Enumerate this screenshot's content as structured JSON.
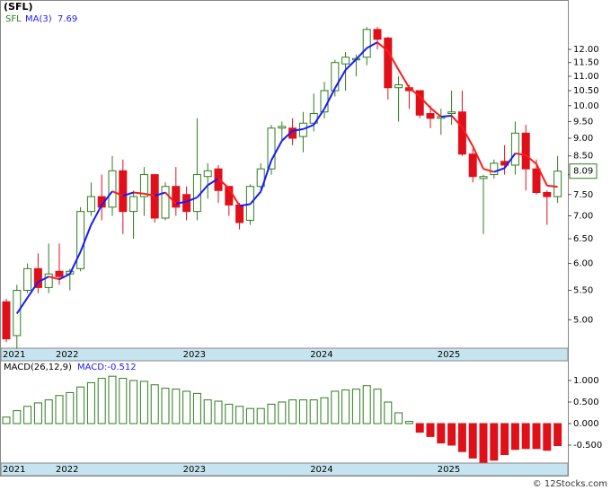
{
  "title": "(SFL)",
  "footer": "© 12Stocks.com",
  "chart_data": [
    {
      "type": "candlestick",
      "log": true,
      "legend": {
        "symbol": "SFL",
        "ma_name": "MA(3)"
      },
      "categories": [
        "2021",
        null,
        null,
        null,
        null,
        "2022",
        null,
        null,
        null,
        null,
        null,
        null,
        null,
        null,
        null,
        null,
        null,
        "2023",
        null,
        null,
        null,
        null,
        null,
        null,
        null,
        null,
        null,
        null,
        null,
        "2024",
        null,
        null,
        null,
        null,
        null,
        null,
        null,
        null,
        null,
        null,
        null,
        "2025",
        null,
        null,
        null,
        null,
        null,
        null,
        null,
        null,
        null,
        null,
        null
      ],
      "open": [
        5.3,
        4.75,
        5.5,
        5.9,
        5.55,
        5.85,
        5.8,
        5.9,
        7.1,
        7.45,
        7.2,
        8.1,
        7.1,
        7.45,
        8.0,
        6.95,
        7.7,
        7.5,
        7.1,
        7.95,
        8.15,
        7.7,
        7.25,
        6.9,
        7.7,
        8.15,
        9.3,
        9.3,
        9.05,
        9.45,
        9.8,
        10.5,
        11.45,
        11.6,
        11.7,
        12.8,
        12.45,
        10.6,
        10.6,
        10.5,
        9.75,
        9.6,
        9.75,
        9.8,
        8.55,
        7.9,
        8.0,
        8.35,
        8.25,
        9.15,
        8.15,
        7.55,
        7.45
      ],
      "high": [
        5.35,
        5.6,
        6.0,
        6.2,
        6.4,
        6.4,
        5.9,
        7.2,
        7.8,
        8.0,
        8.5,
        8.4,
        7.6,
        8.2,
        8.0,
        7.8,
        8.2,
        7.7,
        9.6,
        8.3,
        8.25,
        7.7,
        7.3,
        7.75,
        8.3,
        9.4,
        9.5,
        9.6,
        9.8,
        10.4,
        10.8,
        11.6,
        11.9,
        11.8,
        12.9,
        12.9,
        12.5,
        11.0,
        10.7,
        10.5,
        10.0,
        9.9,
        10.5,
        10.5,
        8.7,
        8.0,
        8.4,
        8.8,
        9.5,
        9.4,
        8.4,
        7.6,
        8.5
      ],
      "low": [
        4.65,
        4.55,
        5.45,
        5.45,
        5.45,
        5.6,
        5.5,
        5.85,
        7.0,
        6.9,
        7.0,
        6.6,
        6.5,
        7.0,
        6.85,
        6.9,
        7.0,
        6.9,
        6.9,
        7.4,
        7.3,
        7.0,
        6.7,
        6.8,
        7.6,
        8.0,
        8.9,
        8.8,
        8.6,
        9.2,
        9.6,
        10.3,
        10.5,
        11.0,
        11.4,
        12.0,
        10.2,
        9.5,
        9.9,
        9.6,
        9.3,
        9.1,
        9.4,
        8.5,
        7.8,
        6.6,
        7.9,
        8.0,
        8.0,
        7.6,
        7.5,
        6.8,
        7.3
      ],
      "close": [
        4.7,
        5.5,
        5.9,
        5.55,
        5.8,
        5.75,
        5.85,
        7.1,
        7.45,
        7.2,
        8.1,
        7.1,
        7.45,
        8.0,
        6.95,
        7.7,
        7.2,
        7.1,
        8.0,
        8.1,
        7.6,
        7.25,
        6.85,
        7.7,
        8.15,
        9.3,
        9.35,
        9.0,
        9.45,
        9.75,
        10.5,
        11.5,
        11.7,
        11.65,
        12.8,
        12.4,
        10.6,
        10.7,
        10.5,
        9.7,
        9.6,
        9.65,
        9.8,
        8.55,
        7.95,
        7.95,
        8.3,
        8.25,
        9.15,
        8.15,
        7.55,
        7.45,
        8.09
      ],
      "ma": [
        null,
        5.1,
        5.37,
        5.65,
        5.75,
        5.7,
        5.8,
        6.23,
        6.8,
        7.25,
        7.58,
        7.47,
        7.55,
        7.52,
        7.47,
        7.55,
        7.28,
        7.33,
        7.43,
        7.73,
        7.9,
        7.65,
        7.23,
        7.27,
        7.57,
        8.38,
        8.93,
        9.22,
        9.27,
        9.4,
        9.9,
        10.58,
        11.23,
        11.62,
        12.05,
        12.28,
        11.93,
        11.23,
        10.6,
        10.3,
        9.93,
        9.65,
        9.68,
        9.33,
        8.77,
        8.15,
        8.07,
        8.17,
        8.57,
        8.52,
        8.28,
        7.72,
        7.69
      ],
      "up_color": "#2e7d1e",
      "down_color": "#e0101a",
      "ma_up_color": "#1a1aff",
      "ma_down_color": "#ff1a1a",
      "ylim": [
        4.56,
        14.0
      ],
      "yticks": [
        {
          "value": 5,
          "label": "5.00"
        },
        {
          "value": 5.5,
          "label": "5.50"
        },
        {
          "value": 6,
          "label": "6.00"
        },
        {
          "value": 6.5,
          "label": "6.50"
        },
        {
          "value": 7,
          "label": "7.00"
        },
        {
          "value": 7.5,
          "label": "7.50"
        },
        {
          "value": 8,
          "label": "8.00"
        },
        {
          "value": 8.5,
          "label": "8.50"
        },
        {
          "value": 9,
          "label": "9.00"
        },
        {
          "value": 9.5,
          "label": "9.50"
        },
        {
          "value": 10,
          "label": "10.00"
        },
        {
          "value": 10.5,
          "label": "10.50"
        },
        {
          "value": 11,
          "label": "11.00"
        },
        {
          "value": 11.5,
          "label": "11.50"
        },
        {
          "value": 12,
          "label": "12.00"
        }
      ]
    },
    {
      "type": "bar",
      "legend": [
        "MACD(26,12,9)",
        "MACD:-0.512"
      ],
      "categories": [
        "2021",
        null,
        null,
        null,
        null,
        "2022",
        null,
        null,
        null,
        null,
        null,
        null,
        null,
        null,
        null,
        null,
        null,
        "2023",
        null,
        null,
        null,
        null,
        null,
        null,
        null,
        null,
        null,
        null,
        null,
        "2024",
        null,
        null,
        null,
        null,
        null,
        null,
        null,
        null,
        null,
        null,
        null,
        "2025",
        null,
        null,
        null,
        null,
        null,
        null,
        null,
        null,
        null,
        null,
        null
      ],
      "values": [
        0.15,
        0.3,
        0.4,
        0.48,
        0.55,
        0.65,
        0.72,
        0.85,
        0.95,
        1.05,
        1.1,
        1.05,
        1.0,
        0.98,
        0.9,
        0.82,
        0.8,
        0.75,
        0.7,
        0.55,
        0.52,
        0.45,
        0.4,
        0.35,
        0.35,
        0.45,
        0.5,
        0.55,
        0.55,
        0.55,
        0.6,
        0.75,
        0.78,
        0.8,
        0.88,
        0.8,
        0.5,
        0.25,
        0.05,
        -0.2,
        -0.3,
        -0.45,
        -0.5,
        -0.65,
        -0.8,
        -0.9,
        -0.85,
        -0.72,
        -0.6,
        -0.58,
        -0.58,
        -0.62,
        -0.512
      ],
      "pos_color": "#2e7d1e",
      "neg_color": "#e0101a",
      "ylim": [
        -0.917,
        1.458
      ],
      "yticks": [
        {
          "value": 1,
          "label": "1.000"
        },
        {
          "value": 0.5,
          "label": "0.500"
        },
        {
          "value": 0,
          "label": "0.000"
        },
        {
          "value": -0.5,
          "label": "-0.500"
        }
      ]
    }
  ]
}
